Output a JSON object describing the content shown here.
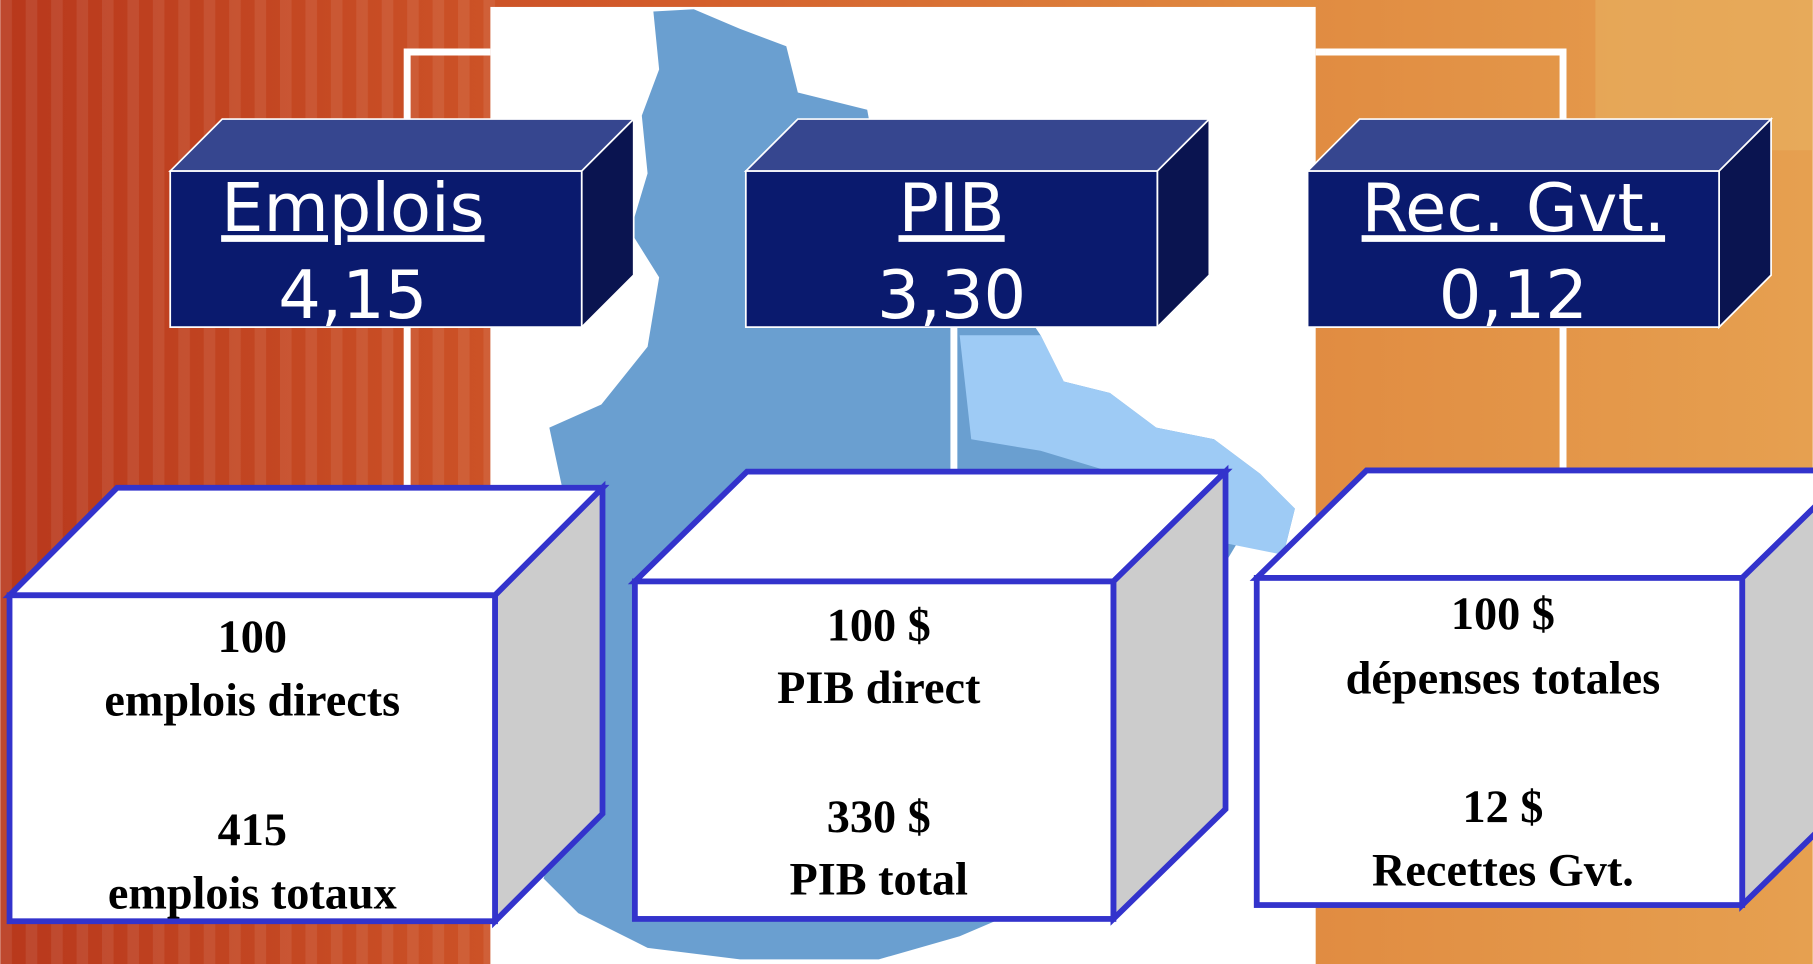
{
  "boxes": [
    {
      "title": "Emplois",
      "multiplier": "4,15",
      "lines": [
        "100",
        "emplois directs",
        "415",
        "emplois totaux"
      ]
    },
    {
      "title": "PIB",
      "multiplier": "3,30",
      "lines": [
        "100 $",
        "PIB direct",
        "330 $",
        "PIB total"
      ]
    },
    {
      "title": "Rec. Gvt.",
      "multiplier": "0,12",
      "lines": [
        "100 $",
        "dépenses totales",
        "12 $",
        "Recettes Gvt."
      ]
    }
  ]
}
